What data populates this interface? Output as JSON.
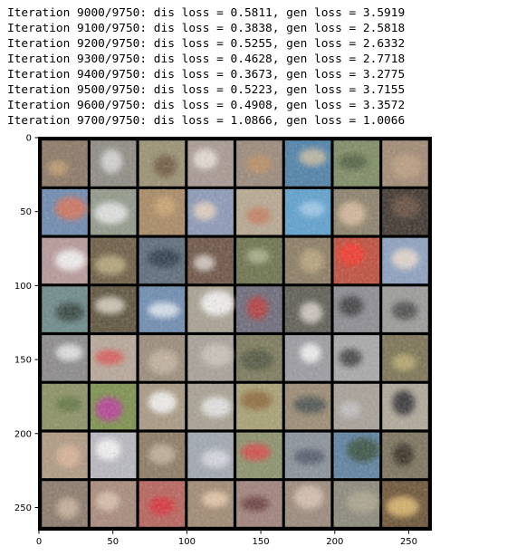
{
  "output_log": [
    "Iteration 9000/9750: dis loss = 0.5811, gen loss = 3.5919",
    "Iteration 9100/9750: dis loss = 0.3838, gen loss = 2.5818",
    "Iteration 9200/9750: dis loss = 0.5255, gen loss = 2.6332",
    "Iteration 9300/9750: dis loss = 0.4628, gen loss = 2.7718",
    "Iteration 9400/9750: dis loss = 0.3673, gen loss = 3.2775",
    "Iteration 9500/9750: dis loss = 0.5223, gen loss = 3.7155",
    "Iteration 9600/9750: dis loss = 0.4908, gen loss = 3.3572",
    "Iteration 9700/9750: dis loss = 1.0866, gen loss = 1.0066"
  ],
  "figure": {
    "x_ticks": [
      "0",
      "50",
      "100",
      "150",
      "200",
      "250"
    ],
    "y_ticks": [
      "0",
      "50",
      "100",
      "150",
      "200",
      "250"
    ],
    "x_tick_values": [
      0,
      50,
      100,
      150,
      200,
      250
    ],
    "y_tick_values": [
      0,
      50,
      100,
      150,
      200,
      250
    ],
    "image_extent": [
      0,
      265
    ],
    "grid": {
      "rows": 8,
      "cols": 8,
      "tiles": [
        [
          "#8a7560",
          "#8c8a80",
          "#9a9070",
          "#a89890",
          "#9a8878",
          "#4a7fa8",
          "#7c8a60",
          "#a08870"
        ],
        [
          "#6a88b0",
          "#909888",
          "#a88860",
          "#8a98b8",
          "#b8a890",
          "#5aa0d0",
          "#8a8068",
          "#3a3028"
        ],
        [
          "#b89898",
          "#6a5a40",
          "#5a6878",
          "#6a5040",
          "#6a7048",
          "#8a7a60",
          "#c04a38",
          "#8aa0c0"
        ],
        [
          "#6a8888",
          "#5a5038",
          "#6a8ab0",
          "#a8a090",
          "#6a6878",
          "#5a5a50",
          "#8a8a90",
          "#9a9a98"
        ],
        [
          "#8a8888",
          "#b8a898",
          "#9a8a78",
          "#a8a098",
          "#7a7858",
          "#9a9aa0",
          "#a8a8a8",
          "#7a7050"
        ],
        [
          "#8a9060",
          "#7a9048",
          "#a89880",
          "#a8a090",
          "#a8a070",
          "#9a8a70",
          "#a8a098",
          "#b0a898"
        ],
        [
          "#b09880",
          "#b8b8c0",
          "#8a7860",
          "#a0a8b0",
          "#8a9068",
          "#889098",
          "#5a80a0",
          "#7a7058"
        ],
        [
          "#8a7868",
          "#a88878",
          "#b86058",
          "#a08870",
          "#a08078",
          "#9a8878",
          "#8a8878",
          "#6a5030"
        ]
      ],
      "tile_accents": [
        [
          "#c8a070",
          "#e0e0e0",
          "#6a5038",
          "#f0e8e0",
          "#c09060",
          "#d0c0a0",
          "#4a5838",
          "#c0a080"
        ],
        [
          "#e07050",
          "#f0f0f0",
          "#d0a870",
          "#f0d8c0",
          "#c87858",
          "#a8d0f0",
          "#e0c0a0",
          "#6a5040"
        ],
        [
          "#ffffff",
          "#c0b080",
          "#203040",
          "#e0d8d0",
          "#b0b890",
          "#c0a880",
          "#ff3020",
          "#f0e0d0"
        ],
        [
          "#2a3830",
          "#e0d8c8",
          "#e8f0f8",
          "#ffffff",
          "#c03030",
          "#e0d8d0",
          "#303030",
          "#404040"
        ],
        [
          "#f0f0f0",
          "#e05050",
          "#c8b8a0",
          "#d0c8c0",
          "#4a5038",
          "#ffffff",
          "#303030",
          "#c0b070"
        ],
        [
          "#5a7038",
          "#c030a0",
          "#ffffff",
          "#f0f0f0",
          "#8a6030",
          "#404848",
          "#c8c8c8",
          "#202028"
        ],
        [
          "#e0b898",
          "#ffffff",
          "#c8b8a0",
          "#e0e0e8",
          "#e04040",
          "#4a5060",
          "#304830",
          "#2a2018"
        ],
        [
          "#d0b8a0",
          "#e0c8b0",
          "#e02830",
          "#f0d0b0",
          "#603030",
          "#e0c8b8",
          "#b0a890",
          "#e8c070"
        ]
      ]
    }
  }
}
